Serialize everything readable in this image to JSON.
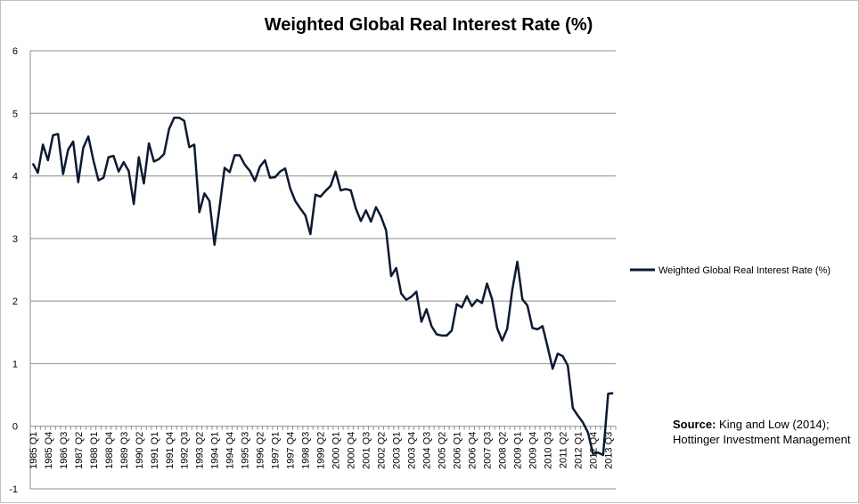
{
  "chart_data": {
    "type": "line",
    "title": "Weighted Global Real Interest Rate (%)",
    "xlabel": "",
    "ylabel": "",
    "ylim": [
      -1,
      6
    ],
    "y_ticks": [
      "-1",
      "0",
      "1",
      "2",
      "3",
      "4",
      "5",
      "6"
    ],
    "grid": "horizontal",
    "legend_position": "right",
    "series_color": "#0b1a33",
    "x": [
      "1985 Q1",
      "1985 Q2",
      "1985 Q3",
      "1985 Q4",
      "1986 Q1",
      "1986 Q2",
      "1986 Q3",
      "1986 Q4",
      "1987 Q1",
      "1987 Q2",
      "1987 Q3",
      "1987 Q4",
      "1988 Q1",
      "1988 Q2",
      "1988 Q3",
      "1988 Q4",
      "1989 Q1",
      "1989 Q2",
      "1989 Q3",
      "1989 Q4",
      "1990 Q1",
      "1990 Q2",
      "1990 Q3",
      "1990 Q4",
      "1991 Q1",
      "1991 Q2",
      "1991 Q3",
      "1991 Q4",
      "1992 Q1",
      "1992 Q2",
      "1992 Q3",
      "1992 Q4",
      "1993 Q1",
      "1993 Q2",
      "1993 Q3",
      "1993 Q4",
      "1994 Q1",
      "1994 Q2",
      "1994 Q3",
      "1994 Q4",
      "1995 Q1",
      "1995 Q2",
      "1995 Q3",
      "1995 Q4",
      "1996 Q1",
      "1996 Q2",
      "1996 Q3",
      "1996 Q4",
      "1997 Q1",
      "1997 Q2",
      "1997 Q3",
      "1997 Q4",
      "1998 Q1",
      "1998 Q2",
      "1998 Q3",
      "1998 Q4",
      "1999 Q1",
      "1999 Q2",
      "1999 Q3",
      "1999 Q4",
      "2000 Q1",
      "2000 Q2",
      "2000 Q3",
      "2000 Q4",
      "2001 Q1",
      "2001 Q2",
      "2001 Q3",
      "2001 Q4",
      "2002 Q1",
      "2002 Q2",
      "2002 Q3",
      "2002 Q4",
      "2003 Q1",
      "2003 Q2",
      "2003 Q3",
      "2003 Q4",
      "2004 Q1",
      "2004 Q2",
      "2004 Q3",
      "2004 Q4",
      "2005 Q1",
      "2005 Q2",
      "2005 Q3",
      "2005 Q4",
      "2006 Q1",
      "2006 Q2",
      "2006 Q3",
      "2006 Q4",
      "2007 Q1",
      "2007 Q2",
      "2007 Q3",
      "2007 Q4",
      "2008 Q1",
      "2008 Q2",
      "2008 Q3",
      "2008 Q4",
      "2009 Q1",
      "2009 Q2",
      "2009 Q3",
      "2009 Q4",
      "2010 Q1",
      "2010 Q2",
      "2010 Q3",
      "2010 Q4",
      "2011 Q1",
      "2011 Q2",
      "2011 Q3",
      "2011 Q4",
      "2012 Q1",
      "2012 Q2",
      "2012 Q3",
      "2012 Q4",
      "2013 Q1",
      "2013 Q2",
      "2013 Q3",
      "2013 Q4"
    ],
    "x_tick_labels": [
      "1985 Q1",
      "1985 Q4",
      "1986 Q3",
      "1987 Q2",
      "1988 Q1",
      "1988 Q4",
      "1989 Q3",
      "1990 Q2",
      "1991 Q1",
      "1991 Q4",
      "1992 Q3",
      "1993 Q2",
      "1994 Q1",
      "1994 Q4",
      "1995 Q3",
      "1996 Q2",
      "1997 Q1",
      "1997 Q4",
      "1998 Q3",
      "1999 Q2",
      "2000 Q1",
      "2000 Q4",
      "2001 Q3",
      "2002 Q2",
      "2003 Q1",
      "2003 Q4",
      "2004 Q3",
      "2005 Q2",
      "2006 Q1",
      "2006 Q4",
      "2007 Q3",
      "2008 Q2",
      "2009 Q1",
      "2009 Q4",
      "2010 Q3",
      "2011 Q2",
      "2012 Q1",
      "2012 Q4",
      "2013 Q3"
    ],
    "series": [
      {
        "name": "Weighted Global Real Interest Rate (%)",
        "values": [
          4.2,
          4.05,
          4.5,
          4.25,
          4.65,
          4.67,
          4.03,
          4.42,
          4.55,
          3.9,
          4.45,
          4.63,
          4.25,
          3.93,
          3.97,
          4.3,
          4.32,
          4.07,
          4.22,
          4.08,
          3.55,
          4.3,
          3.88,
          4.52,
          4.23,
          4.27,
          4.35,
          4.75,
          4.93,
          4.93,
          4.88,
          4.46,
          4.5,
          3.42,
          3.72,
          3.6,
          2.9,
          3.5,
          4.13,
          4.06,
          4.33,
          4.33,
          4.18,
          4.08,
          3.92,
          4.15,
          4.25,
          3.97,
          3.98,
          4.07,
          4.12,
          3.8,
          3.6,
          3.48,
          3.37,
          3.07,
          3.7,
          3.67,
          3.76,
          3.84,
          4.07,
          3.77,
          3.79,
          3.77,
          3.48,
          3.28,
          3.45,
          3.27,
          3.5,
          3.35,
          3.13,
          2.4,
          2.53,
          2.12,
          2.02,
          2.07,
          2.15,
          1.67,
          1.87,
          1.6,
          1.47,
          1.45,
          1.45,
          1.53,
          1.95,
          1.9,
          2.08,
          1.92,
          2.02,
          1.97,
          2.28,
          2.03,
          1.57,
          1.37,
          1.56,
          2.18,
          2.63,
          2.03,
          1.93,
          1.57,
          1.55,
          1.6,
          1.27,
          0.92,
          1.16,
          1.12,
          0.97,
          0.29,
          0.17,
          0.06,
          -0.1,
          -0.44,
          -0.42,
          -0.46,
          0.52,
          0.53
        ]
      }
    ]
  },
  "source_note": {
    "label": "Source:",
    "text": " King and Low (2014); Hottinger Investment Management"
  }
}
